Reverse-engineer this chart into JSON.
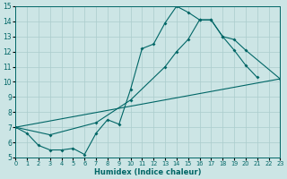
{
  "xlabel": "Humidex (Indice chaleur)",
  "bg_color": "#cce5e5",
  "grid_color": "#aacccc",
  "line_color": "#006666",
  "ylim": [
    5,
    15
  ],
  "xlim": [
    0,
    23
  ],
  "yticks": [
    5,
    6,
    7,
    8,
    9,
    10,
    11,
    12,
    13,
    14,
    15
  ],
  "xticks": [
    0,
    1,
    2,
    3,
    4,
    5,
    6,
    7,
    8,
    9,
    10,
    11,
    12,
    13,
    14,
    15,
    16,
    17,
    18,
    19,
    20,
    21,
    22,
    23
  ],
  "line1_x": [
    0,
    1,
    2,
    3,
    4,
    5,
    6,
    7,
    8,
    9,
    10,
    11,
    12,
    13,
    14,
    15,
    16,
    17,
    18,
    19,
    20,
    21
  ],
  "line1_y": [
    7.0,
    6.6,
    5.8,
    5.5,
    5.5,
    5.6,
    5.2,
    6.6,
    7.5,
    7.2,
    9.5,
    12.2,
    12.5,
    13.9,
    15.0,
    14.6,
    14.1,
    14.1,
    13.0,
    12.1,
    11.1,
    10.3
  ],
  "line2_x": [
    0,
    3,
    7,
    10,
    13,
    14,
    15,
    16,
    17,
    18,
    19,
    20,
    23
  ],
  "line2_y": [
    7.0,
    6.5,
    7.3,
    8.8,
    11.0,
    12.0,
    12.8,
    14.1,
    14.1,
    13.0,
    12.8,
    12.1,
    10.2
  ],
  "line3_x": [
    0,
    23
  ],
  "line3_y": [
    7.0,
    10.2
  ]
}
